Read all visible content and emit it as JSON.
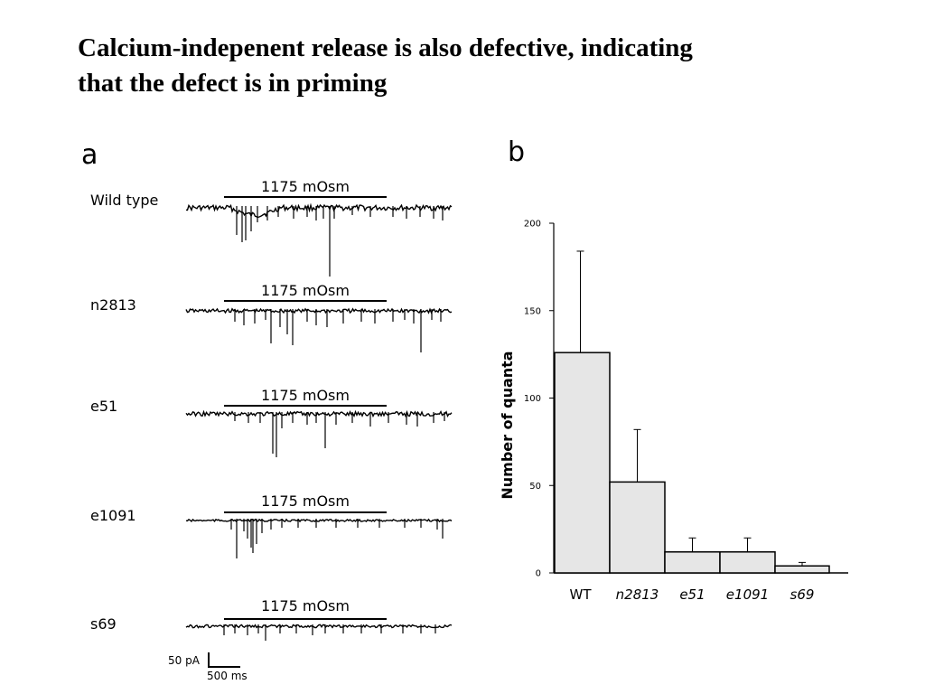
{
  "title_lines": [
    "Calcium-indepenent release is also defective, indicating",
    "that the defect is in priming"
  ],
  "panel_a_letter": "a",
  "panel_b_letter": "b",
  "traces": [
    {
      "label": "Wild type",
      "stim_label": "1175 mOsm"
    },
    {
      "label": "n2813",
      "stim_label": "1175 mOsm"
    },
    {
      "label": "e51",
      "stim_label": "1175 mOsm"
    },
    {
      "label": "e1091",
      "stim_label": "1175 mOsm"
    },
    {
      "label": "s69",
      "stim_label": "1175 mOsm"
    }
  ],
  "scale_bar": {
    "vertical_label": "50 pA",
    "horizontal_label": "500 ms"
  },
  "chart_data": {
    "type": "bar",
    "categories": [
      "WT",
      "n2813",
      "e51",
      "e1091",
      "s69"
    ],
    "values": [
      126,
      52,
      12,
      12,
      4
    ],
    "errors": [
      58,
      30,
      8,
      8,
      2
    ],
    "ylabel": "Number of quanta",
    "xlabel": "",
    "ylim": [
      0,
      200
    ],
    "yticks": [
      0,
      50,
      100,
      150,
      200
    ],
    "grid": false,
    "bar_color": "#e6e6e6"
  }
}
